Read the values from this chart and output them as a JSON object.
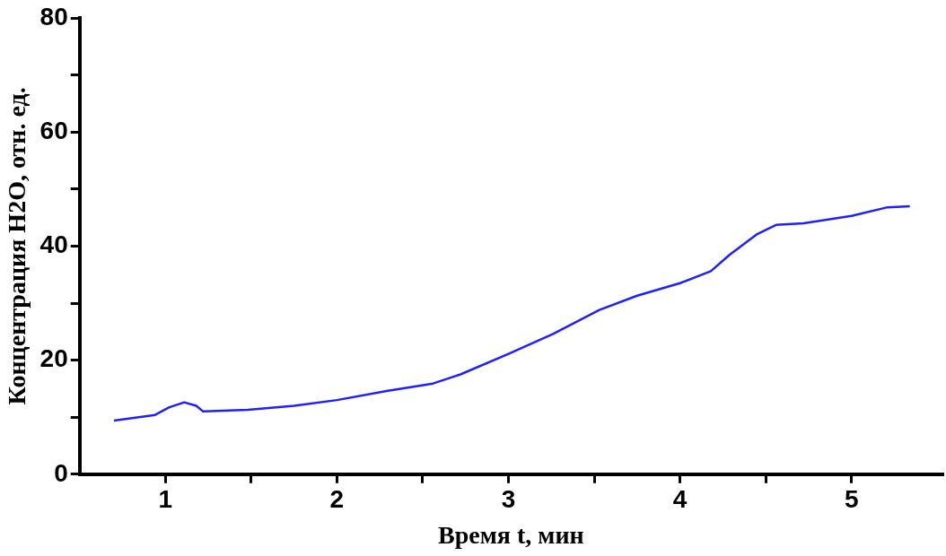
{
  "chart_data": {
    "type": "line",
    "xlabel": "Время t, мин",
    "ylabel": "Концентрация H2O, отн. ед.",
    "x": [
      0.7,
      0.94,
      1.02,
      1.11,
      1.18,
      1.22,
      1.48,
      1.75,
      2.0,
      2.29,
      2.56,
      2.72,
      3.0,
      3.26,
      3.53,
      3.75,
      4.0,
      4.18,
      4.29,
      4.45,
      4.56,
      4.72,
      5.0,
      5.21,
      5.34
    ],
    "series": [
      {
        "color": "#1f1fff",
        "values": [
          9.4,
          10.4,
          11.7,
          12.6,
          12.0,
          11.0,
          11.3,
          12.0,
          13.0,
          14.6,
          15.9,
          17.5,
          21.1,
          24.6,
          28.8,
          31.3,
          33.5,
          35.6,
          38.5,
          42.1,
          43.7,
          44.0,
          45.3,
          46.8,
          47.0
        ]
      }
    ],
    "xlim": [
      0.5,
      5.53
    ],
    "ylim": [
      0,
      80
    ],
    "xticks": [
      1,
      {
        "value": 1.5,
        "label": null
      },
      2,
      {
        "value": 2.5,
        "label": null
      },
      3,
      {
        "value": 3.5,
        "label": null
      },
      4,
      {
        "value": 4.5,
        "label": null
      },
      5
    ],
    "yticks": [
      0,
      {
        "value": 10,
        "label": null
      },
      20,
      {
        "value": 30,
        "label": null
      },
      40,
      {
        "value": 50,
        "label": null
      },
      60,
      {
        "value": 70,
        "label": null
      },
      80
    ],
    "grid": false,
    "marker": "none",
    "line_style": "solid"
  }
}
